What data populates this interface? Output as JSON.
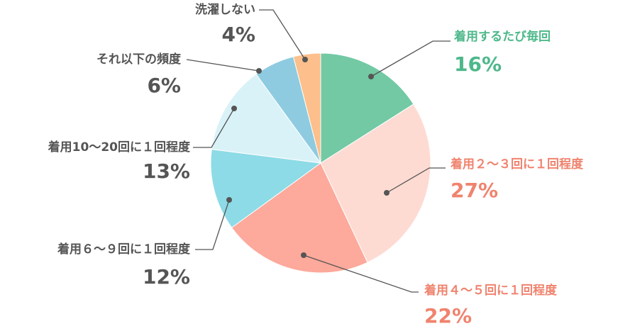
{
  "chart_data": {
    "type": "pie",
    "categories": [
      "着用するたび毎回",
      "着用２～３回に１回程度",
      "着用４～５回に１回程度",
      "着用６～９回に１回程度",
      "着用10～20回に１回程度",
      "それ以下の頻度",
      "洗濯しない"
    ],
    "values": [
      16,
      27,
      22,
      12,
      13,
      6,
      4
    ],
    "value_labels": [
      "16%",
      "27%",
      "22%",
      "12%",
      "13%",
      "6%",
      "4%"
    ],
    "colors": [
      "#72c9a4",
      "#fddbd3",
      "#fda99b",
      "#8ddbe6",
      "#d9f2f7",
      "#8ecbe0",
      "#fdbf8b"
    ],
    "label_colors": [
      "#4db88a",
      "#f0836e",
      "#f0836e",
      "#555555",
      "#555555",
      "#555555",
      "#555555"
    ]
  }
}
